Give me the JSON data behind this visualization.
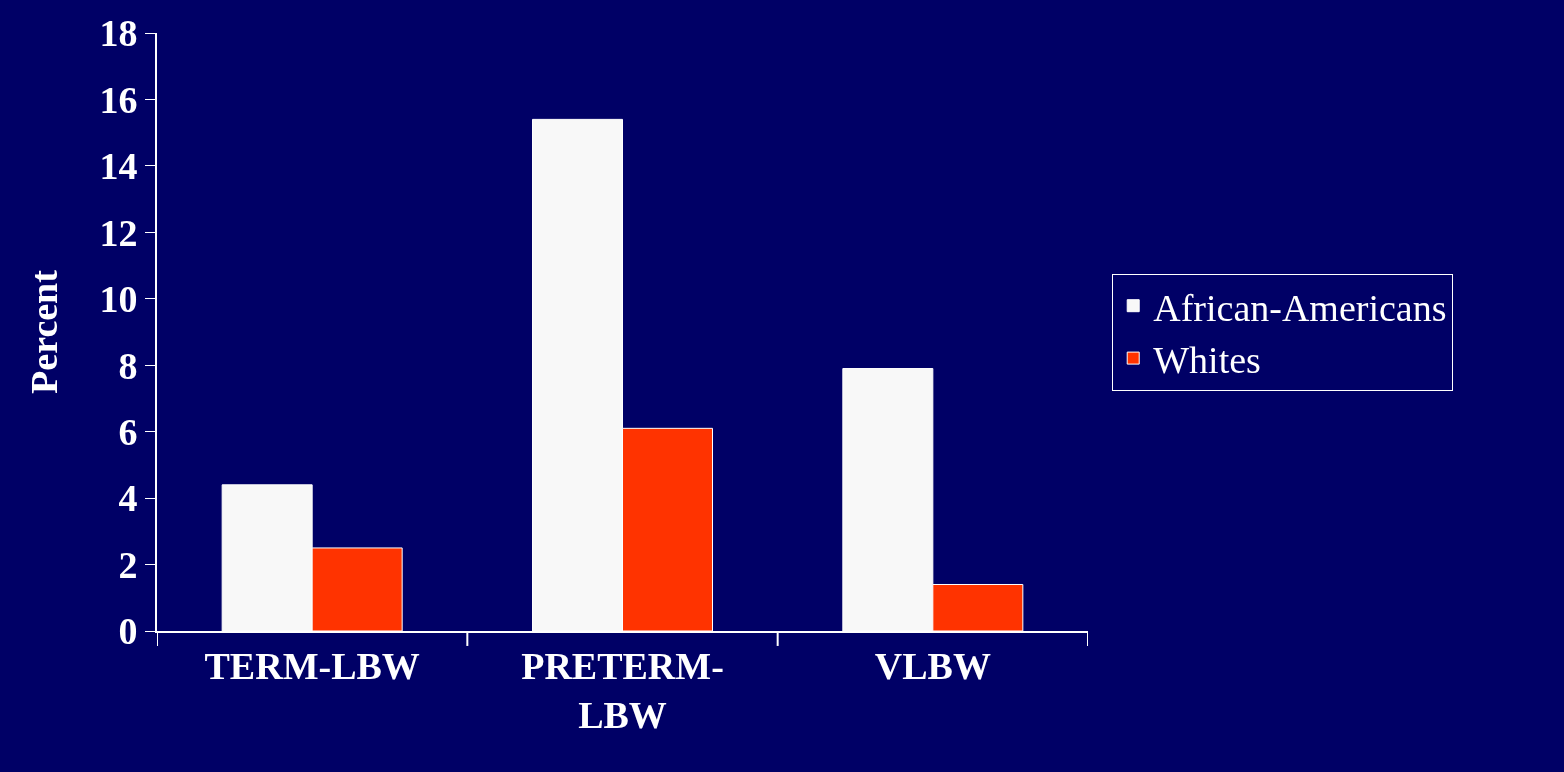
{
  "chart_data": {
    "type": "bar",
    "ylabel": "Percent",
    "categories": [
      "TERM-LBW",
      "PRETERM-LBW",
      "VLBW"
    ],
    "series": [
      {
        "name": "African-Americans",
        "color": "#f8f8f8",
        "values": [
          4.4,
          15.4,
          7.9
        ]
      },
      {
        "name": "Whites",
        "color": "#ff3300",
        "values": [
          2.5,
          6.1,
          1.4
        ]
      }
    ],
    "ylim": [
      0,
      18
    ],
    "yticks": [
      0,
      2,
      4,
      6,
      8,
      10,
      12,
      14,
      16,
      18
    ],
    "grid": false,
    "legend": "right"
  }
}
